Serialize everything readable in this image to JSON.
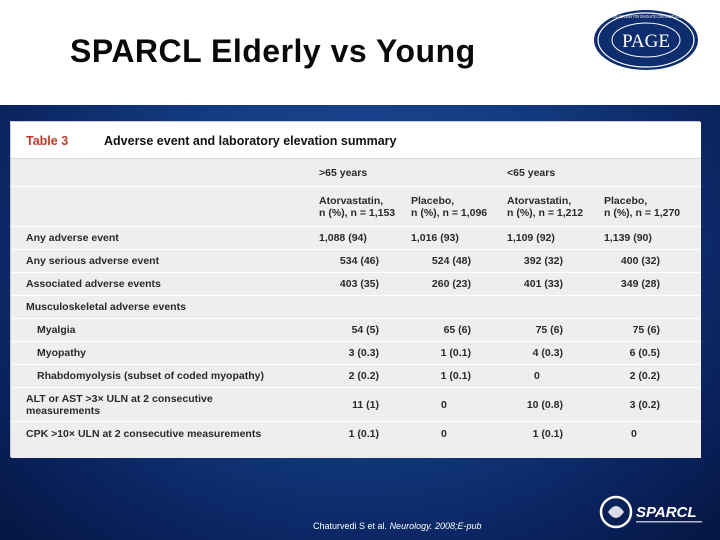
{
  "slide": {
    "title": "SPARCL Elderly vs Young",
    "citation_prefix": "Chaturvedi S et al.",
    "citation_journal": "Neurology.",
    "citation_suffix": "2008;E-pub"
  },
  "logos": {
    "page": {
      "center_text": "PAGE",
      "ring_text": "PHYSICIANS' ACADEMY FOR GRADUATE CONTINUING EDUCATION"
    },
    "sparcl": {
      "text": "SPARCL"
    }
  },
  "table": {
    "number": "Table 3",
    "caption": "Adverse event and laboratory elevation summary",
    "groups": [
      ">65 years",
      "<65 years"
    ],
    "columns": [
      {
        "line1": "Atorvastatin,",
        "line2": "n (%), n = 1,153"
      },
      {
        "line1": "Placebo,",
        "line2": "n (%), n = 1,096"
      },
      {
        "line1": "Atorvastatin,",
        "line2": "n (%), n = 1,212"
      },
      {
        "line1": "Placebo,",
        "line2": "n (%), n = 1,270"
      }
    ],
    "rows": [
      {
        "label": "Any adverse event",
        "values": [
          "1,088 (94)",
          "1,016 (93)",
          "1,109 (92)",
          "1,139 (90)"
        ]
      },
      {
        "label": "Any serious adverse event",
        "values": [
          "534 (46)",
          "524 (48)",
          "392 (32)",
          "400 (32)"
        ]
      },
      {
        "label": "Associated adverse events",
        "values": [
          "403 (35)",
          "260 (23)",
          "401 (33)",
          "349 (28)"
        ]
      },
      {
        "label": "Musculoskeletal adverse events",
        "values": []
      },
      {
        "label": "Myalgia",
        "values": [
          "54 (5)",
          "65 (6)",
          "75 (6)",
          "75 (6)"
        ]
      },
      {
        "label": "Myopathy",
        "values": [
          "3 (0.3)",
          "1 (0.1)",
          "4 (0.3)",
          "6 (0.5)"
        ]
      },
      {
        "label": "Rhabdomyolysis (subset of coded myopathy)",
        "values": [
          "2 (0.2)",
          "1 (0.1)",
          "0",
          "2 (0.2)"
        ]
      },
      {
        "label_line1": "ALT or AST >3× ULN at 2 consecutive",
        "label_line2": "measurements",
        "values": [
          "11 (1)",
          "0",
          "10 (0.8)",
          "3 (0.2)"
        ]
      },
      {
        "label": "CPK >10× ULN at 2 consecutive measurements",
        "values": [
          "1 (0.1)",
          "0",
          "1 (0.1)",
          "0"
        ]
      }
    ]
  }
}
